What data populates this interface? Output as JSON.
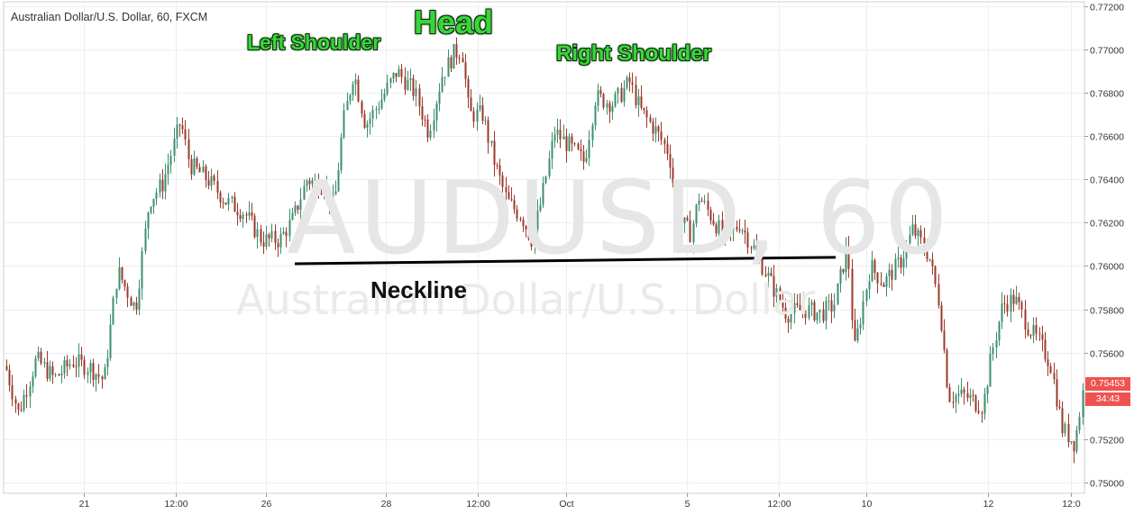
{
  "chart_title": "Australian Dollar/U.S. Dollar, 60, FXCM",
  "watermark": {
    "ticker": "AUDUSD, 60",
    "name": "Australian Dollar/U.S. Dollar"
  },
  "annotations": {
    "left_shoulder": "Left Shoulder",
    "head": "Head",
    "right_shoulder": "Right Shoulder",
    "neckline": "Neckline"
  },
  "price_tags": {
    "last_price": "0.75453",
    "countdown": "34:43"
  },
  "colors": {
    "up_candle": "#3d8f6f",
    "down_candle": "#9b3a2c",
    "grid": "#eeeeee",
    "annotation_text": "#3ad53a",
    "neckline": "#000000",
    "price_tag": "#ef5350"
  },
  "chart_data": {
    "type": "candlestick",
    "title": "Australian Dollar/U.S. Dollar, 60, FXCM",
    "ylim": [
      0.7495,
      0.7722
    ],
    "y_ticks": [
      "0.77200",
      "0.77000",
      "0.76800",
      "0.76600",
      "0.76400",
      "0.76200",
      "0.76000",
      "0.75800",
      "0.75600",
      "0.75200",
      "0.75000"
    ],
    "x_ticks": [
      "21",
      "12:00",
      "26",
      "28",
      "12:00",
      "Oct",
      "5",
      "12:00",
      "10",
      "12",
      "12:0"
    ],
    "grid": true,
    "close_path": [
      [
        0,
        0.7563
      ],
      [
        20,
        0.7532
      ],
      [
        40,
        0.7557
      ],
      [
        60,
        0.7548
      ],
      [
        80,
        0.7556
      ],
      [
        100,
        0.7553
      ],
      [
        115,
        0.7547
      ],
      [
        130,
        0.7598
      ],
      [
        150,
        0.758
      ],
      [
        165,
        0.763
      ],
      [
        180,
        0.7638
      ],
      [
        200,
        0.7667
      ],
      [
        210,
        0.7647
      ],
      [
        230,
        0.764
      ],
      [
        250,
        0.763
      ],
      [
        270,
        0.7625
      ],
      [
        290,
        0.7612
      ],
      [
        310,
        0.7612
      ],
      [
        325,
        0.7622
      ],
      [
        340,
        0.764
      ],
      [
        360,
        0.7637
      ],
      [
        370,
        0.7627
      ],
      [
        380,
        0.7665
      ],
      [
        392,
        0.769
      ],
      [
        405,
        0.7665
      ],
      [
        420,
        0.7675
      ],
      [
        440,
        0.769
      ],
      [
        460,
        0.768
      ],
      [
        475,
        0.7662
      ],
      [
        490,
        0.7688
      ],
      [
        503,
        0.7698
      ],
      [
        512,
        0.77
      ],
      [
        520,
        0.767
      ],
      [
        535,
        0.767
      ],
      [
        548,
        0.7648
      ],
      [
        562,
        0.763
      ],
      [
        578,
        0.7623
      ],
      [
        590,
        0.7612
      ],
      [
        600,
        0.763
      ],
      [
        615,
        0.7662
      ],
      [
        632,
        0.7655
      ],
      [
        648,
        0.7648
      ],
      [
        660,
        0.7678
      ],
      [
        680,
        0.7675
      ],
      [
        698,
        0.7685
      ],
      [
        710,
        0.7672
      ],
      [
        728,
        0.7662
      ],
      [
        742,
        0.7652
      ],
      [
        752,
        0.7622
      ],
      [
        766,
        0.7615
      ],
      [
        775,
        0.7632
      ],
      [
        790,
        0.7622
      ],
      [
        805,
        0.7612
      ],
      [
        820,
        0.762
      ],
      [
        840,
        0.7605
      ],
      [
        855,
        0.7592
      ],
      [
        872,
        0.7578
      ],
      [
        892,
        0.758
      ],
      [
        910,
        0.7578
      ],
      [
        925,
        0.7582
      ],
      [
        940,
        0.761
      ],
      [
        947,
        0.756
      ],
      [
        955,
        0.7578
      ],
      [
        965,
        0.76
      ],
      [
        980,
        0.7592
      ],
      [
        1000,
        0.7603
      ],
      [
        1012,
        0.7617
      ],
      [
        1030,
        0.7605
      ],
      [
        1042,
        0.7582
      ],
      [
        1052,
        0.754
      ],
      [
        1070,
        0.754
      ],
      [
        1090,
        0.7535
      ],
      [
        1100,
        0.756
      ],
      [
        1112,
        0.7582
      ],
      [
        1125,
        0.7585
      ],
      [
        1140,
        0.7572
      ],
      [
        1152,
        0.7565
      ],
      [
        1165,
        0.7555
      ],
      [
        1178,
        0.7525
      ],
      [
        1192,
        0.7518
      ],
      [
        1202,
        0.7545
      ]
    ],
    "neckline": {
      "start": [
        0.7601,
        "26"
      ],
      "end": [
        0.7604,
        "10"
      ]
    }
  }
}
